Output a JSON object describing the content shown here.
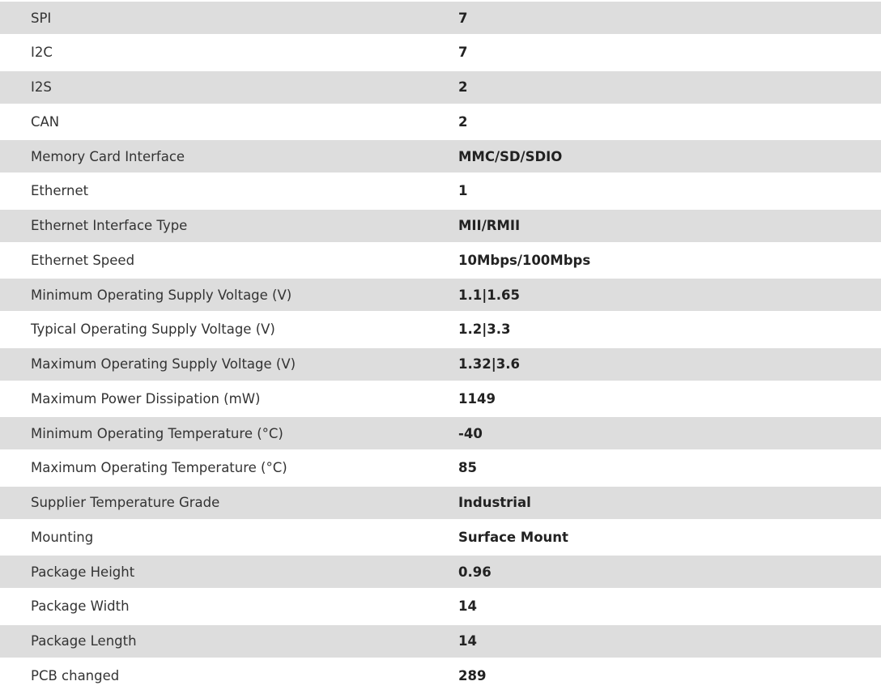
{
  "rows": [
    {
      "label": "SPI",
      "value": "7"
    },
    {
      "label": "I2C",
      "value": "7"
    },
    {
      "label": "I2S",
      "value": "2"
    },
    {
      "label": "CAN",
      "value": "2"
    },
    {
      "label": "Memory Card Interface",
      "value": "MMC/SD/SDIO"
    },
    {
      "label": "Ethernet",
      "value": "1"
    },
    {
      "label": "Ethernet Interface Type",
      "value": "MII/RMII"
    },
    {
      "label": "Ethernet Speed",
      "value": "10Mbps/100Mbps"
    },
    {
      "label": "Minimum Operating Supply Voltage (V)",
      "value": "1.1|1.65"
    },
    {
      "label": "Typical Operating Supply Voltage (V)",
      "value": "1.2|3.3"
    },
    {
      "label": "Maximum Operating Supply Voltage (V)",
      "value": "1.32|3.6"
    },
    {
      "label": "Maximum Power Dissipation (mW)",
      "value": "1149"
    },
    {
      "label": "Minimum Operating Temperature (°C)",
      "value": "-40"
    },
    {
      "label": "Maximum Operating Temperature (°C)",
      "value": "85"
    },
    {
      "label": "Supplier Temperature Grade",
      "value": "Industrial"
    },
    {
      "label": "Mounting",
      "value": "Surface Mount"
    },
    {
      "label": "Package Height",
      "value": "0.96"
    },
    {
      "label": "Package Width",
      "value": "14"
    },
    {
      "label": "Package Length",
      "value": "14"
    },
    {
      "label": "PCB changed",
      "value": "289"
    }
  ]
}
